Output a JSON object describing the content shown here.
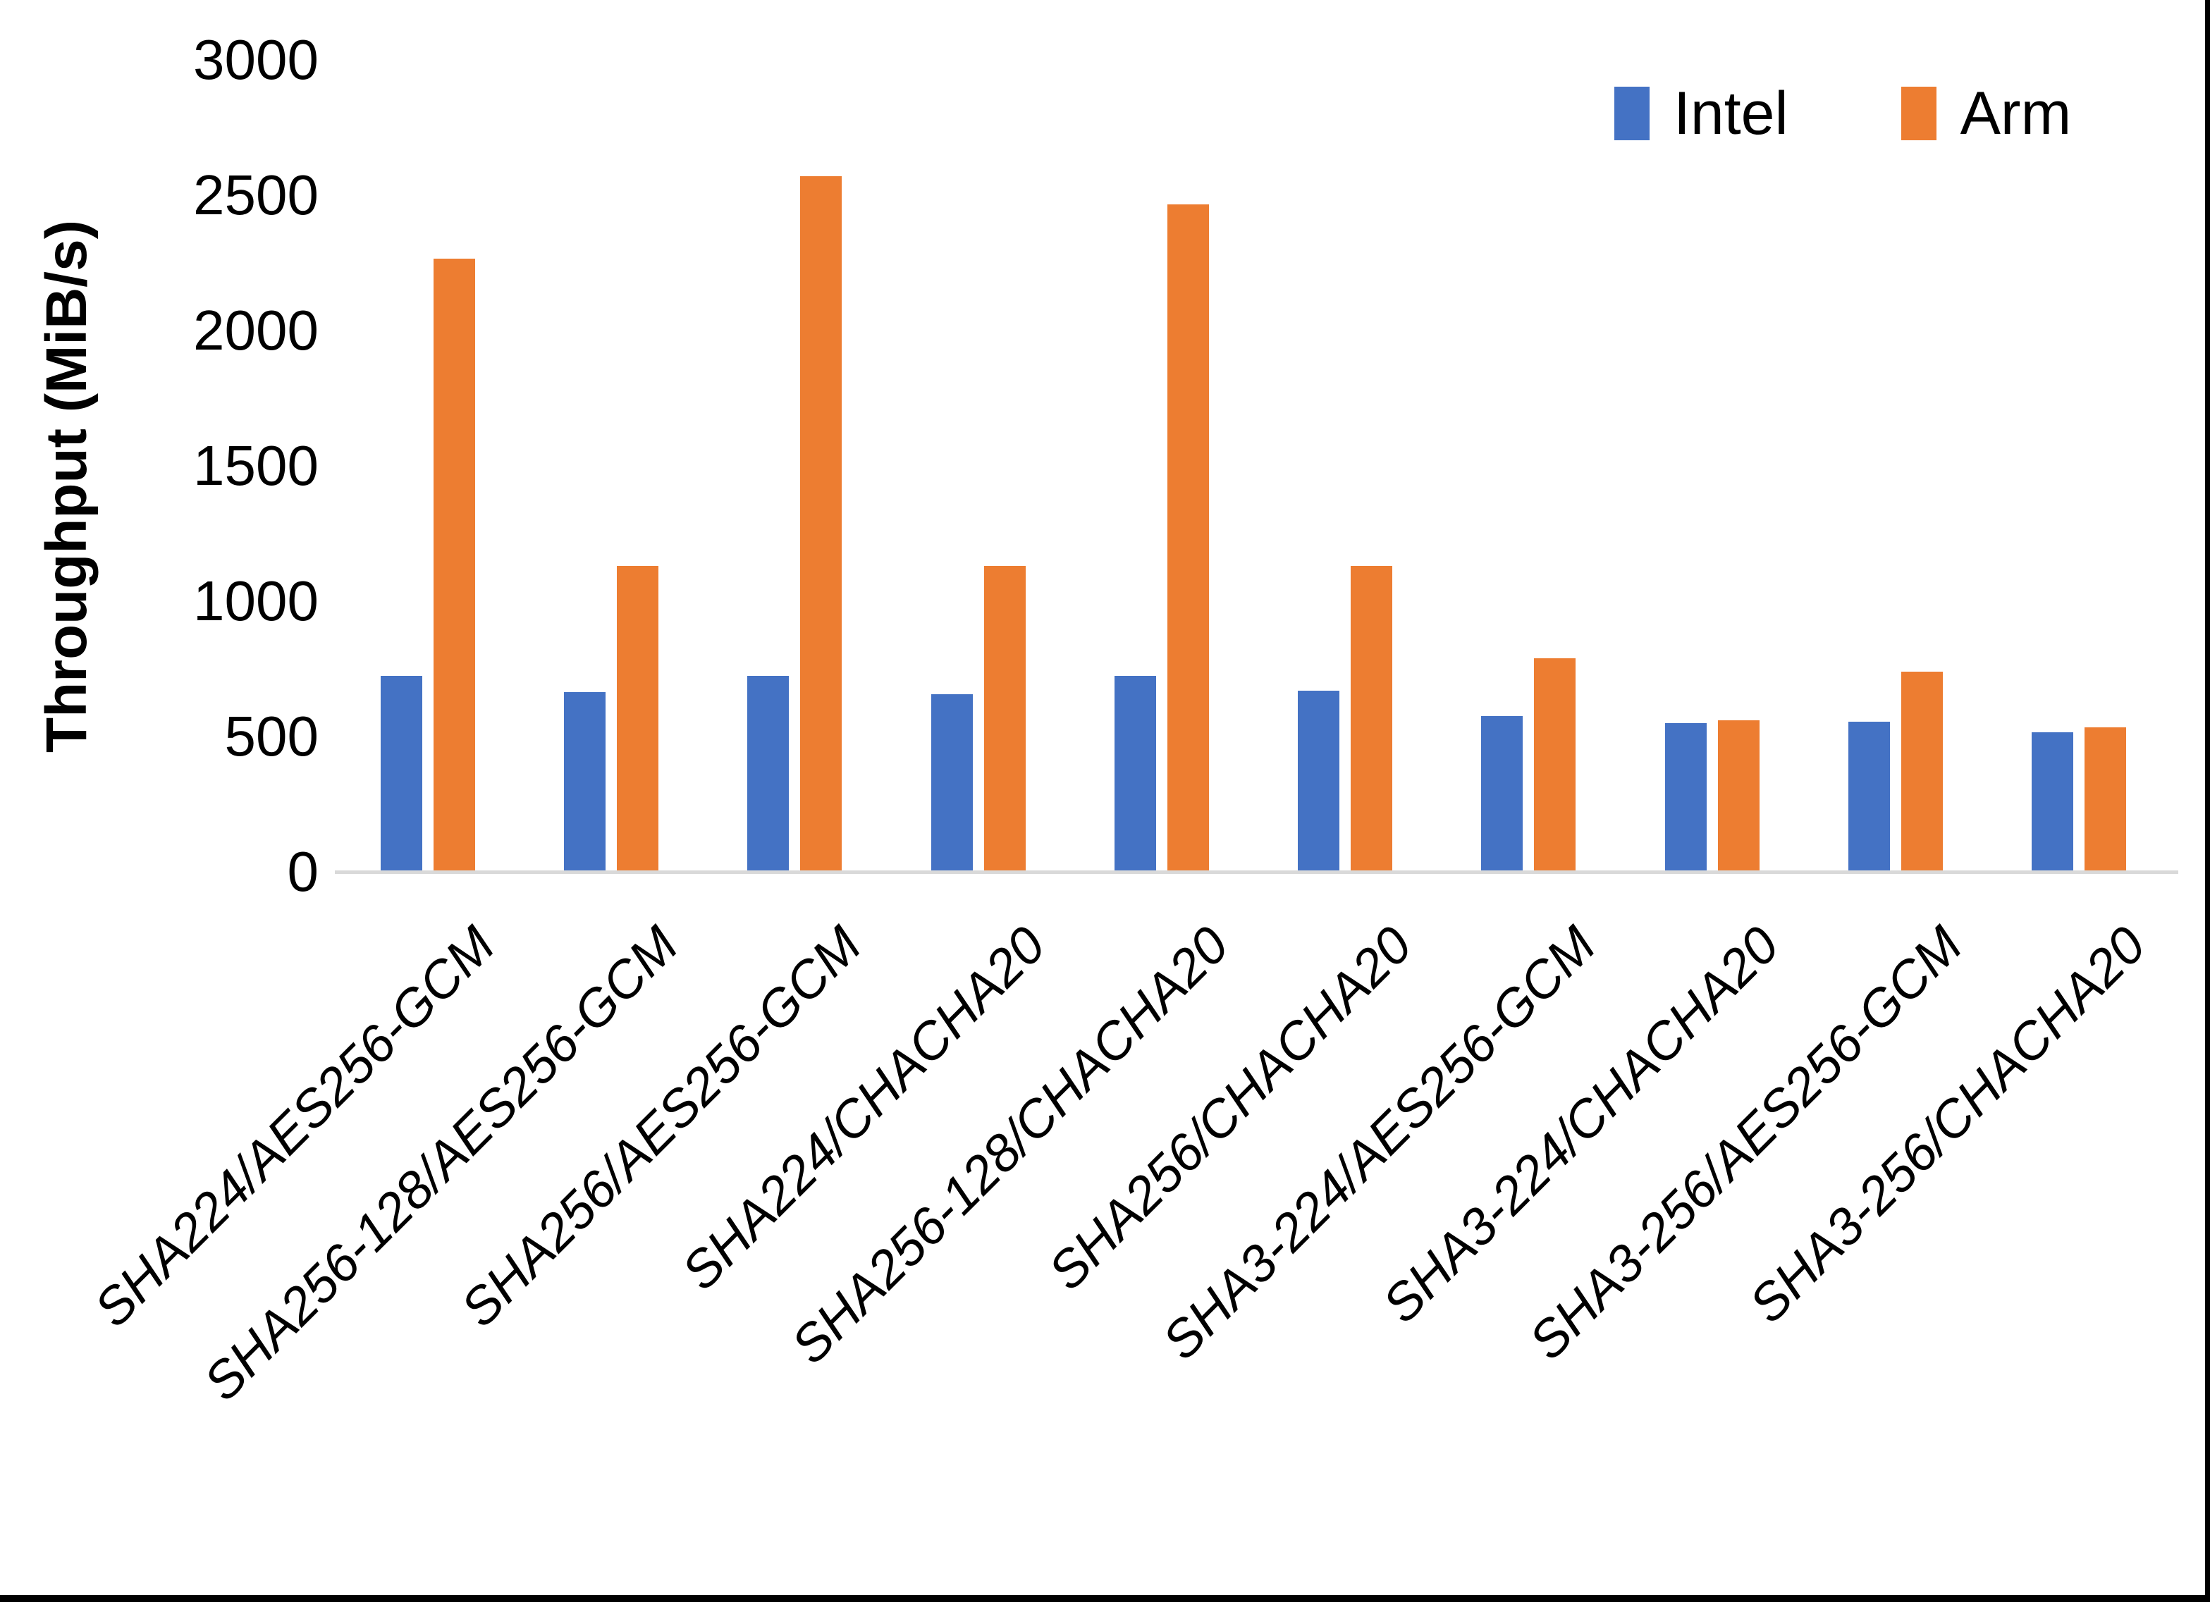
{
  "chart_data": {
    "type": "bar",
    "title": "",
    "ylabel": "Throughput (MiB/s)",
    "ylim": [
      0,
      3000
    ],
    "yticks": [
      0,
      500,
      1000,
      1500,
      2000,
      2500,
      3000
    ],
    "grid": false,
    "legend_position": "top-right",
    "categories": [
      "SHA224/AES256-GCM",
      "SHA256-128/AES256-GCM",
      "SHA256/AES256-GCM",
      "SHA224/CHACHA20",
      "SHA256-128/CHACHA20",
      "SHA256/CHACHA20",
      "SHA3-224/AES256-GCM",
      "SHA3-224/CHACHA20",
      "SHA3-256/AES256-GCM",
      "SHA3-256/CHACHA20"
    ],
    "series": [
      {
        "name": "Intel",
        "color": "#4472C4",
        "values": [
          725,
          665,
          725,
          655,
          725,
          670,
          575,
          550,
          555,
          515
        ]
      },
      {
        "name": "Arm",
        "color": "#ED7D31",
        "values": [
          2265,
          1130,
          2570,
          1130,
          2465,
          1130,
          790,
          560,
          740,
          535
        ]
      }
    ],
    "colors": {
      "axis_line": "#d9d9d9",
      "text": "#000000",
      "background": "#ffffff"
    }
  }
}
